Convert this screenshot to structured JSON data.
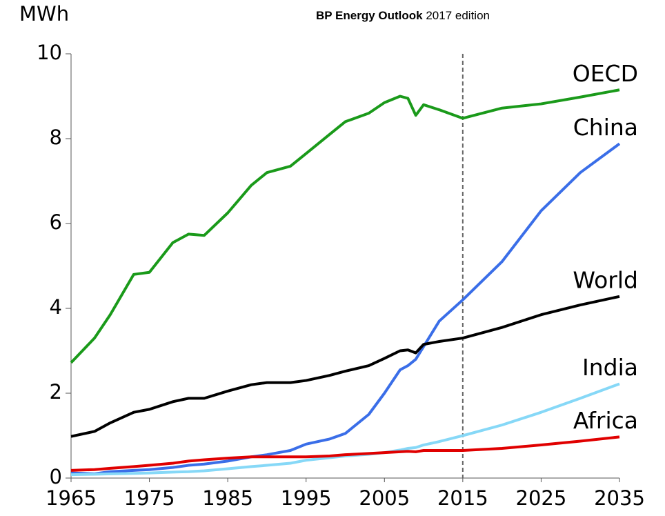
{
  "chart_data": {
    "type": "line",
    "title": "BP Energy Outlook",
    "subtitle": "2017 edition",
    "y_label": "MWh",
    "x": [
      1965,
      1968,
      1970,
      1973,
      1975,
      1978,
      1980,
      1982,
      1985,
      1988,
      1990,
      1993,
      1995,
      1998,
      2000,
      2003,
      2005,
      2007,
      2008,
      2009,
      2010,
      2012,
      2015,
      2020,
      2025,
      2030,
      2035
    ],
    "series": [
      {
        "name": "OECD",
        "color": "#1a9a1a",
        "values": [
          2.72,
          3.3,
          3.85,
          4.8,
          4.85,
          5.55,
          5.75,
          5.72,
          6.25,
          6.9,
          7.2,
          7.35,
          7.65,
          8.1,
          8.4,
          8.6,
          8.85,
          9.0,
          8.95,
          8.55,
          8.8,
          8.68,
          8.48,
          8.72,
          8.82,
          8.98,
          9.15
        ]
      },
      {
        "name": "China",
        "color": "#3a6ee8",
        "values": [
          0.12,
          0.1,
          0.15,
          0.18,
          0.2,
          0.25,
          0.3,
          0.33,
          0.4,
          0.5,
          0.55,
          0.65,
          0.8,
          0.92,
          1.05,
          1.5,
          2.0,
          2.55,
          2.65,
          2.8,
          3.1,
          3.7,
          4.2,
          5.1,
          6.3,
          7.2,
          7.88
        ]
      },
      {
        "name": "World",
        "color": "#000000",
        "values": [
          0.98,
          1.1,
          1.3,
          1.55,
          1.62,
          1.8,
          1.88,
          1.88,
          2.05,
          2.2,
          2.25,
          2.25,
          2.3,
          2.42,
          2.52,
          2.65,
          2.82,
          3.0,
          3.02,
          2.95,
          3.15,
          3.22,
          3.3,
          3.55,
          3.85,
          4.08,
          4.28
        ]
      },
      {
        "name": "India",
        "color": "#86d8f7",
        "values": [
          0.08,
          0.09,
          0.1,
          0.11,
          0.12,
          0.14,
          0.15,
          0.17,
          0.22,
          0.27,
          0.3,
          0.35,
          0.42,
          0.48,
          0.52,
          0.56,
          0.6,
          0.66,
          0.7,
          0.72,
          0.78,
          0.86,
          1.0,
          1.25,
          1.55,
          1.88,
          2.22
        ]
      },
      {
        "name": "Africa",
        "color": "#e00000",
        "values": [
          0.18,
          0.2,
          0.23,
          0.27,
          0.3,
          0.35,
          0.4,
          0.43,
          0.47,
          0.5,
          0.5,
          0.5,
          0.5,
          0.52,
          0.55,
          0.58,
          0.6,
          0.62,
          0.63,
          0.62,
          0.65,
          0.65,
          0.65,
          0.7,
          0.78,
          0.87,
          0.97
        ]
      }
    ],
    "xlim": [
      1965,
      2035
    ],
    "xticks": [
      1965,
      1975,
      1985,
      1995,
      2005,
      2015,
      2025,
      2035
    ],
    "ylim": [
      0,
      10
    ],
    "yticks": [
      0,
      2,
      4,
      6,
      8,
      10
    ],
    "vline": 2015,
    "grid": false
  }
}
